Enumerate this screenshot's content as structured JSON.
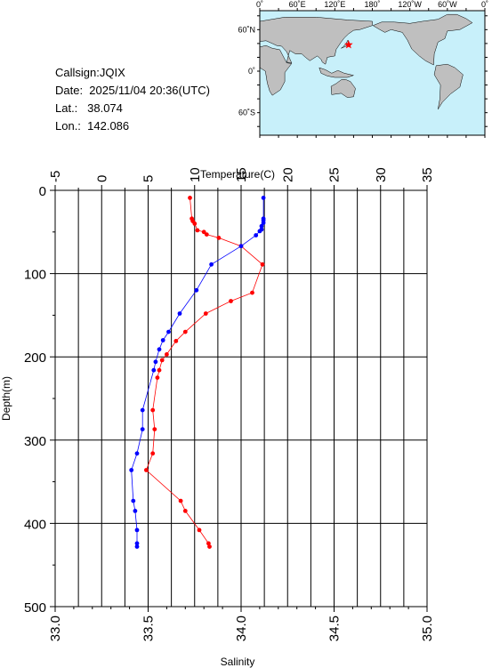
{
  "info": {
    "callsign": "Callsign:JQIX",
    "date": "Date:  2025/11/04 20:36(UTC)",
    "lat": "Lat.:   38.074",
    "lon": "Lon.:  142.086"
  },
  "map": {
    "top_labels": [
      "0˚",
      "60˚E",
      "120˚E",
      "180˚",
      "120˚W",
      "60˚W",
      "0˚"
    ],
    "lat_labels": [
      "60˚N",
      "0˚",
      "60˚S"
    ],
    "ocean_color": "#c8f0fa",
    "land_color": "#bfbfbf",
    "station_color": "#ff0000",
    "station_lon": 142.086,
    "station_lat": 38.074
  },
  "chart_data": {
    "type": "line",
    "temperature_axis": {
      "label": "Temperature(C)",
      "range": [
        -5,
        35
      ],
      "ticks": [
        -5,
        0,
        5,
        10,
        15,
        20,
        25,
        30,
        35
      ]
    },
    "salinity_axis": {
      "label": "Salinity",
      "range": [
        33.0,
        35.0
      ],
      "ticks": [
        "33.0",
        "33.5",
        "34.0",
        "34.5",
        "35.0"
      ]
    },
    "depth_axis": {
      "label": "Depth(m)",
      "range": [
        0,
        500
      ],
      "inverted": true,
      "ticks": [
        0,
        100,
        200,
        300,
        400,
        500
      ]
    },
    "grid": true,
    "series": [
      {
        "quantity": "temperature",
        "color": "#ff0000",
        "points": [
          [
            9.5,
            9
          ],
          [
            9.7,
            34
          ],
          [
            9.8,
            37
          ],
          [
            10.0,
            40
          ],
          [
            10.3,
            48
          ],
          [
            11.0,
            50
          ],
          [
            11.3,
            53
          ],
          [
            12.6,
            57
          ],
          [
            15.0,
            67
          ],
          [
            17.3,
            89
          ],
          [
            16.2,
            123
          ],
          [
            13.9,
            133
          ],
          [
            11.2,
            148
          ],
          [
            9.0,
            170
          ],
          [
            8.0,
            181
          ],
          [
            7.0,
            197
          ],
          [
            6.5,
            204
          ],
          [
            6.2,
            216
          ],
          [
            6.0,
            225
          ],
          [
            5.5,
            264
          ],
          [
            5.7,
            287
          ],
          [
            5.5,
            316
          ],
          [
            4.8,
            336
          ],
          [
            8.5,
            373
          ],
          [
            9.0,
            385
          ],
          [
            10.5,
            408
          ],
          [
            11.5,
            424
          ],
          [
            11.6,
            428
          ]
        ]
      },
      {
        "quantity": "salinity",
        "color": "#0000ff",
        "points": [
          [
            34.12,
            9
          ],
          [
            34.12,
            34
          ],
          [
            34.12,
            36
          ],
          [
            34.12,
            39
          ],
          [
            34.11,
            43
          ],
          [
            34.11,
            47
          ],
          [
            34.1,
            49
          ],
          [
            34.08,
            54
          ],
          [
            34.0,
            67
          ],
          [
            33.84,
            89
          ],
          [
            33.76,
            120
          ],
          [
            33.67,
            148
          ],
          [
            33.61,
            170
          ],
          [
            33.58,
            180
          ],
          [
            33.56,
            191
          ],
          [
            33.54,
            206
          ],
          [
            33.53,
            216
          ],
          [
            33.47,
            264
          ],
          [
            33.47,
            287
          ],
          [
            33.44,
            316
          ],
          [
            33.41,
            336
          ],
          [
            33.42,
            373
          ],
          [
            33.43,
            385
          ],
          [
            33.44,
            408
          ],
          [
            33.44,
            424
          ],
          [
            33.44,
            428
          ]
        ]
      }
    ]
  }
}
